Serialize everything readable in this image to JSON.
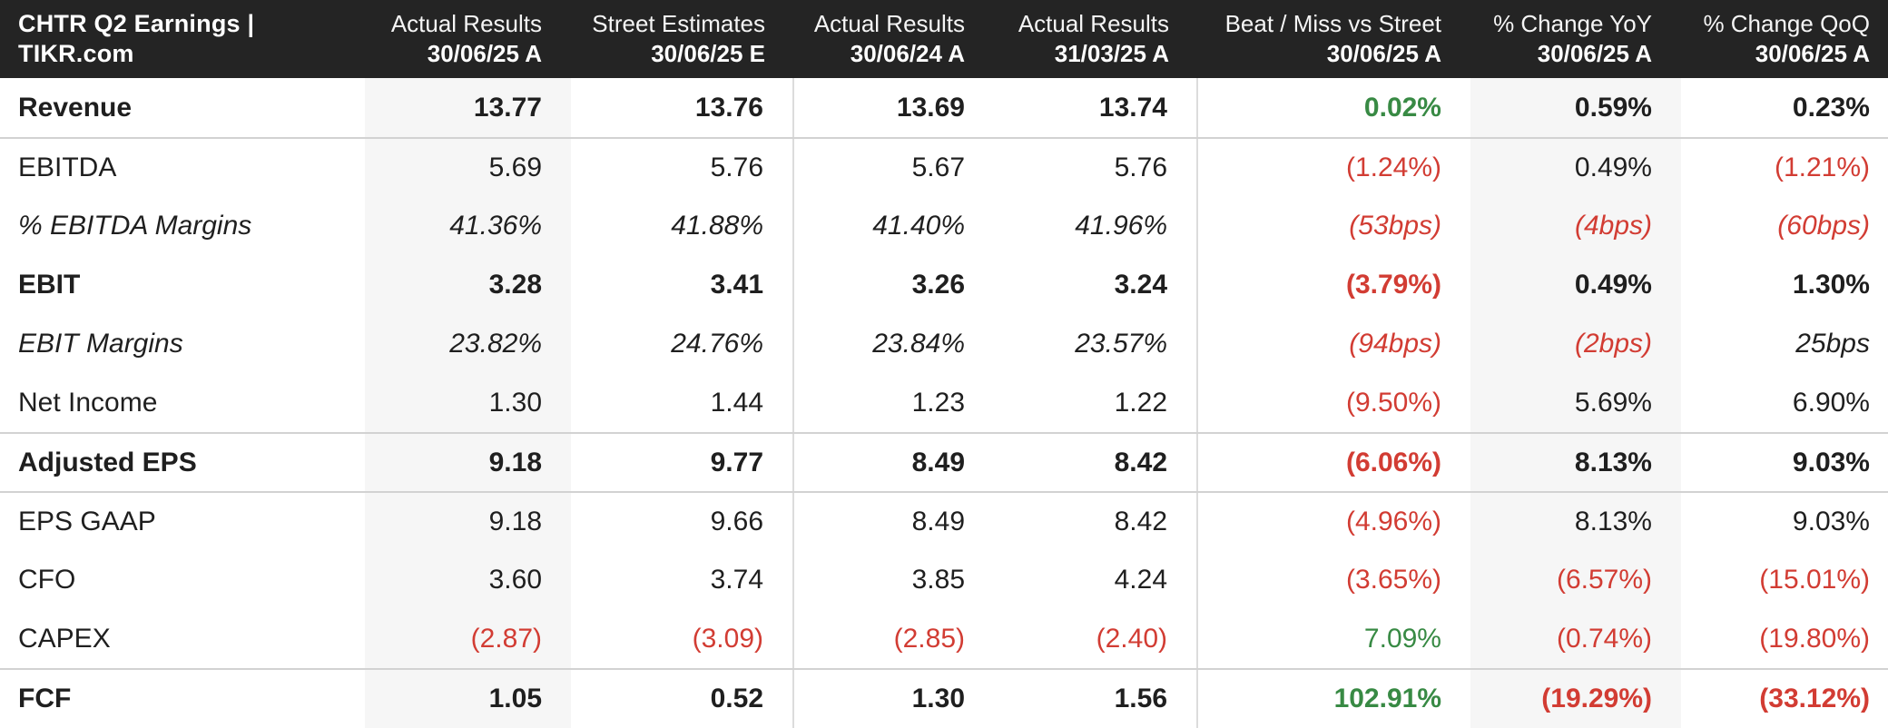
{
  "title": "CHTR Q2 Earnings | TIKR.com",
  "colors": {
    "header_background": "#242424",
    "header_text": "#ffffff",
    "body_text": "#1f1f1f",
    "positive": "#388a44",
    "negative": "#d23c33",
    "shaded_column_background": "#f6f6f6",
    "separator_line": "#d2d2d2"
  },
  "header": {
    "columns": [
      {
        "label": "Actual Results",
        "period": "30/06/25 A"
      },
      {
        "label": "Street Estimates",
        "period": "30/06/25 E"
      },
      {
        "label": "Actual Results",
        "period": "30/06/24 A"
      },
      {
        "label": "Actual Results",
        "period": "31/03/25 A"
      },
      {
        "label": "Beat / Miss vs Street",
        "period": "30/06/25 A"
      },
      {
        "label": "% Change YoY",
        "period": "30/06/25 A"
      },
      {
        "label": "% Change QoQ",
        "period": "30/06/25 A"
      }
    ]
  },
  "rows": [
    {
      "label": "Revenue",
      "emphasis": "bold",
      "separator_above": false,
      "cells": [
        {
          "text": "13.77",
          "tone": "default"
        },
        {
          "text": "13.76",
          "tone": "default"
        },
        {
          "text": "13.69",
          "tone": "default"
        },
        {
          "text": "13.74",
          "tone": "default"
        },
        {
          "text": "0.02%",
          "tone": "positive"
        },
        {
          "text": "0.59%",
          "tone": "default"
        },
        {
          "text": "0.23%",
          "tone": "default"
        }
      ]
    },
    {
      "label": "EBITDA",
      "emphasis": "regular",
      "separator_above": true,
      "cells": [
        {
          "text": "5.69",
          "tone": "default"
        },
        {
          "text": "5.76",
          "tone": "default"
        },
        {
          "text": "5.67",
          "tone": "default"
        },
        {
          "text": "5.76",
          "tone": "default"
        },
        {
          "text": "(1.24%)",
          "tone": "negative"
        },
        {
          "text": "0.49%",
          "tone": "default"
        },
        {
          "text": "(1.21%)",
          "tone": "negative"
        }
      ]
    },
    {
      "label": "% EBITDA Margins",
      "emphasis": "italic",
      "separator_above": false,
      "cells": [
        {
          "text": "41.36%",
          "tone": "default"
        },
        {
          "text": "41.88%",
          "tone": "default"
        },
        {
          "text": "41.40%",
          "tone": "default"
        },
        {
          "text": "41.96%",
          "tone": "default"
        },
        {
          "text": "(53bps)",
          "tone": "negative"
        },
        {
          "text": "(4bps)",
          "tone": "negative"
        },
        {
          "text": "(60bps)",
          "tone": "negative"
        }
      ]
    },
    {
      "label": "EBIT",
      "emphasis": "bold",
      "separator_above": false,
      "cells": [
        {
          "text": "3.28",
          "tone": "default"
        },
        {
          "text": "3.41",
          "tone": "default"
        },
        {
          "text": "3.26",
          "tone": "default"
        },
        {
          "text": "3.24",
          "tone": "default"
        },
        {
          "text": "(3.79%)",
          "tone": "negative"
        },
        {
          "text": "0.49%",
          "tone": "default"
        },
        {
          "text": "1.30%",
          "tone": "default"
        }
      ]
    },
    {
      "label": "EBIT Margins",
      "emphasis": "italic",
      "separator_above": false,
      "cells": [
        {
          "text": "23.82%",
          "tone": "default"
        },
        {
          "text": "24.76%",
          "tone": "default"
        },
        {
          "text": "23.84%",
          "tone": "default"
        },
        {
          "text": "23.57%",
          "tone": "default"
        },
        {
          "text": "(94bps)",
          "tone": "negative"
        },
        {
          "text": "(2bps)",
          "tone": "negative"
        },
        {
          "text": "25bps",
          "tone": "default"
        }
      ]
    },
    {
      "label": "Net Income",
      "emphasis": "regular",
      "separator_above": false,
      "cells": [
        {
          "text": "1.30",
          "tone": "default"
        },
        {
          "text": "1.44",
          "tone": "default"
        },
        {
          "text": "1.23",
          "tone": "default"
        },
        {
          "text": "1.22",
          "tone": "default"
        },
        {
          "text": "(9.50%)",
          "tone": "negative"
        },
        {
          "text": "5.69%",
          "tone": "default"
        },
        {
          "text": "6.90%",
          "tone": "default"
        }
      ]
    },
    {
      "label": "Adjusted EPS",
      "emphasis": "bold",
      "separator_above": true,
      "cells": [
        {
          "text": "9.18",
          "tone": "default"
        },
        {
          "text": "9.77",
          "tone": "default"
        },
        {
          "text": "8.49",
          "tone": "default"
        },
        {
          "text": "8.42",
          "tone": "default"
        },
        {
          "text": "(6.06%)",
          "tone": "negative"
        },
        {
          "text": "8.13%",
          "tone": "default"
        },
        {
          "text": "9.03%",
          "tone": "default"
        }
      ]
    },
    {
      "label": "EPS GAAP",
      "emphasis": "regular",
      "separator_above": true,
      "cells": [
        {
          "text": "9.18",
          "tone": "default"
        },
        {
          "text": "9.66",
          "tone": "default"
        },
        {
          "text": "8.49",
          "tone": "default"
        },
        {
          "text": "8.42",
          "tone": "default"
        },
        {
          "text": "(4.96%)",
          "tone": "negative"
        },
        {
          "text": "8.13%",
          "tone": "default"
        },
        {
          "text": "9.03%",
          "tone": "default"
        }
      ]
    },
    {
      "label": "CFO",
      "emphasis": "regular",
      "separator_above": false,
      "cells": [
        {
          "text": "3.60",
          "tone": "default"
        },
        {
          "text": "3.74",
          "tone": "default"
        },
        {
          "text": "3.85",
          "tone": "default"
        },
        {
          "text": "4.24",
          "tone": "default"
        },
        {
          "text": "(3.65%)",
          "tone": "negative"
        },
        {
          "text": "(6.57%)",
          "tone": "negative"
        },
        {
          "text": "(15.01%)",
          "tone": "negative"
        }
      ]
    },
    {
      "label": "CAPEX",
      "emphasis": "regular",
      "separator_above": false,
      "cells": [
        {
          "text": "(2.87)",
          "tone": "negative"
        },
        {
          "text": "(3.09)",
          "tone": "negative"
        },
        {
          "text": "(2.85)",
          "tone": "negative"
        },
        {
          "text": "(2.40)",
          "tone": "negative"
        },
        {
          "text": "7.09%",
          "tone": "positive"
        },
        {
          "text": "(0.74%)",
          "tone": "negative"
        },
        {
          "text": "(19.80%)",
          "tone": "negative"
        }
      ]
    },
    {
      "label": "FCF",
      "emphasis": "bold",
      "separator_above": true,
      "cells": [
        {
          "text": "1.05",
          "tone": "default"
        },
        {
          "text": "0.52",
          "tone": "default"
        },
        {
          "text": "1.30",
          "tone": "default"
        },
        {
          "text": "1.56",
          "tone": "default"
        },
        {
          "text": "102.91%",
          "tone": "positive"
        },
        {
          "text": "(19.29%)",
          "tone": "negative"
        },
        {
          "text": "(33.12%)",
          "tone": "negative"
        }
      ]
    }
  ]
}
